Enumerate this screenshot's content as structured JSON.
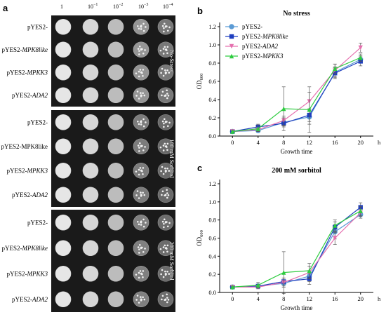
{
  "panel_a": {
    "letter": "a",
    "dilutions": [
      "1",
      "10",
      "10",
      "10",
      "10"
    ],
    "dilution_exps": [
      "",
      "−1",
      "−2",
      "−3",
      "−4"
    ],
    "blocks": [
      {
        "condition": "No-Stress",
        "rows": [
          {
            "prefix": "pYES2-",
            "gene": ""
          },
          {
            "prefix": "pYES2-",
            "gene": "MPK8like"
          },
          {
            "prefix": "pYES2-",
            "gene": "MPKK3"
          },
          {
            "prefix": "pYES2-",
            "gene": "ADA2"
          }
        ]
      },
      {
        "condition": "100 mM Sorbitol",
        "rows": [
          {
            "prefix": "pYES2-",
            "gene": ""
          },
          {
            "prefix": "pYES2-",
            "gene": "MPK8like",
            "upright": true
          },
          {
            "prefix": "pYES2-",
            "gene": "MPKK3"
          },
          {
            "prefix": "pYES2-",
            "gene": "ADA2"
          }
        ]
      },
      {
        "condition": "200 mM Sorbitol",
        "rows": [
          {
            "prefix": "pYES2-",
            "gene": ""
          },
          {
            "prefix": "pYES2-",
            "gene": "MPK8like"
          },
          {
            "prefix": "pYES2-",
            "gene": "MPKK3"
          },
          {
            "prefix": "pYES2-",
            "gene": "ADA2"
          }
        ]
      }
    ]
  },
  "chart_data": [
    {
      "type": "line",
      "letter": "b",
      "title": "No stress",
      "xlabel": "Growth time",
      "x_unit": "h",
      "ylabel": "OD",
      "ylabel_sub": "600",
      "x": [
        0,
        4,
        8,
        12,
        16,
        20
      ],
      "xlim": [
        -2,
        22
      ],
      "ylim": [
        0,
        1.2
      ],
      "yticks": [
        "0.0",
        "0.2",
        "0.4",
        "0.6",
        "0.8",
        "1.0",
        "1.2"
      ],
      "xticks": [
        "0",
        "4",
        "8",
        "12",
        "16",
        "20"
      ],
      "legend": "top-left",
      "grid": false,
      "series": [
        {
          "name": "pYES2-",
          "name_gene": "",
          "color": "#5b9bd5",
          "marker": "circle",
          "values": [
            0.05,
            0.06,
            0.15,
            0.21,
            0.7,
            0.84
          ],
          "err": [
            0.01,
            0.02,
            0.05,
            0.08,
            0.06,
            0.04
          ]
        },
        {
          "name": "pYES2-",
          "name_gene": "MPK8like",
          "color": "#1f3fbf",
          "marker": "square",
          "values": [
            0.05,
            0.1,
            0.14,
            0.23,
            0.69,
            0.82
          ],
          "err": [
            0.01,
            0.03,
            0.03,
            0.07,
            0.06,
            0.05
          ]
        },
        {
          "name": "pYES2-",
          "name_gene": "ADA2",
          "color": "#e56fae",
          "marker": "triangle-down",
          "values": [
            0.05,
            0.07,
            0.17,
            0.38,
            0.72,
            0.97
          ],
          "err": [
            0.01,
            0.02,
            0.05,
            0.1,
            0.07,
            0.05
          ]
        },
        {
          "name": "pYES2-",
          "name_gene": "MPKK3",
          "color": "#2ecc40",
          "marker": "triangle-up",
          "values": [
            0.05,
            0.08,
            0.3,
            0.29,
            0.74,
            0.86
          ],
          "err": [
            0.01,
            0.03,
            0.24,
            0.25,
            0.05,
            0.04
          ]
        }
      ]
    },
    {
      "type": "line",
      "letter": "c",
      "title": "200 mM sorbitol",
      "xlabel": "Growth time",
      "x_unit": "h",
      "ylabel": "OD",
      "ylabel_sub": "600",
      "x": [
        0,
        4,
        8,
        12,
        16,
        20
      ],
      "xlim": [
        -2,
        22
      ],
      "ylim": [
        0,
        1.2
      ],
      "yticks": [
        "0.0",
        "0.2",
        "0.4",
        "0.6",
        "0.8",
        "1.0",
        "1.2"
      ],
      "xticks": [
        "0",
        "4",
        "8",
        "12",
        "16",
        "20"
      ],
      "grid": false,
      "series": [
        {
          "name": "pYES2-",
          "name_gene": "",
          "color": "#5b9bd5",
          "marker": "circle",
          "values": [
            0.06,
            0.07,
            0.1,
            0.18,
            0.67,
            0.86
          ],
          "err": [
            0.01,
            0.02,
            0.04,
            0.06,
            0.08,
            0.04
          ]
        },
        {
          "name": "pYES2-",
          "name_gene": "MPK8like",
          "color": "#1f3fbf",
          "marker": "square",
          "values": [
            0.06,
            0.07,
            0.12,
            0.15,
            0.72,
            0.94
          ],
          "err": [
            0.01,
            0.02,
            0.04,
            0.06,
            0.06,
            0.05
          ]
        },
        {
          "name": "pYES2-",
          "name_gene": "ADA2",
          "color": "#e56fae",
          "marker": "triangle-down",
          "values": [
            0.06,
            0.06,
            0.11,
            0.22,
            0.6,
            0.88
          ],
          "err": [
            0.01,
            0.02,
            0.05,
            0.07,
            0.07,
            0.04
          ]
        },
        {
          "name": "pYES2-",
          "name_gene": "MPKK3",
          "color": "#2ecc40",
          "marker": "triangle-up",
          "values": [
            0.06,
            0.08,
            0.22,
            0.24,
            0.74,
            0.9
          ],
          "err": [
            0.01,
            0.03,
            0.23,
            0.08,
            0.06,
            0.05
          ]
        }
      ]
    }
  ]
}
